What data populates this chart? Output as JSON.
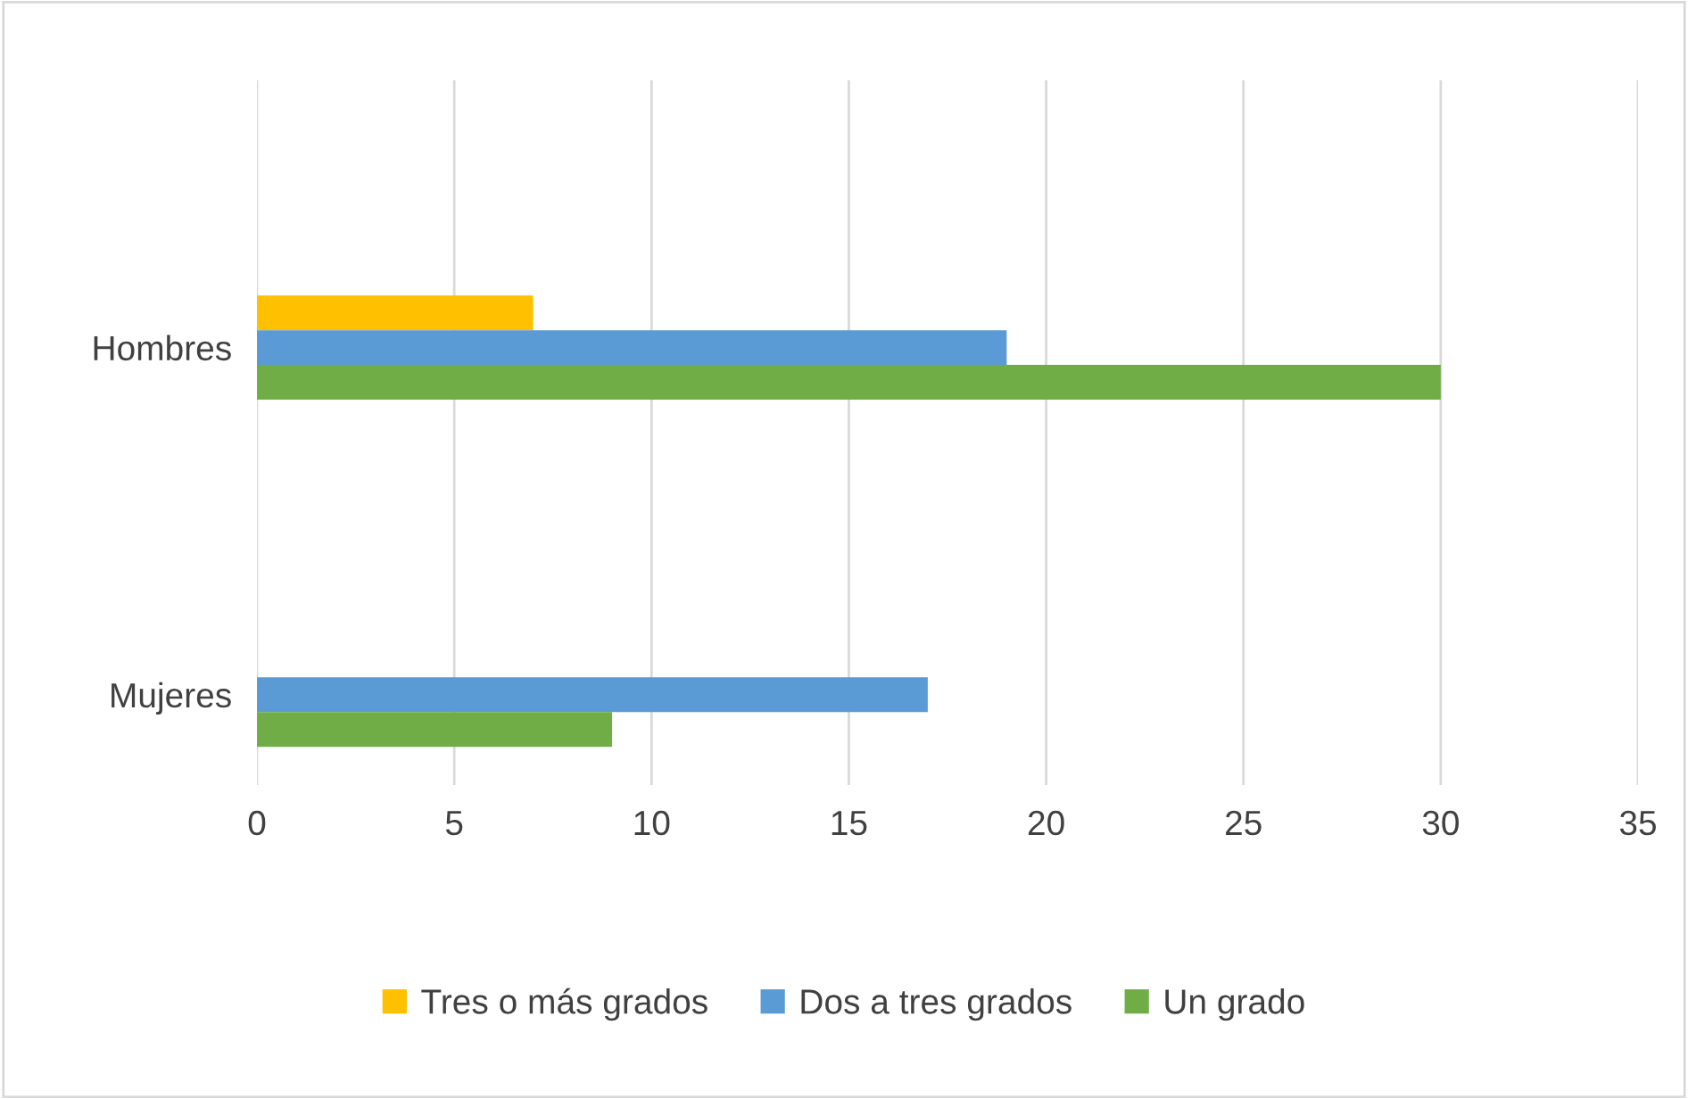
{
  "chart_data": {
    "type": "bar",
    "orientation": "horizontal",
    "categories": [
      "Hombres",
      "Mujeres"
    ],
    "series": [
      {
        "name": "Tres o más grados",
        "color": "#ffc000",
        "values": [
          7,
          0
        ]
      },
      {
        "name": "Dos a tres grados",
        "color": "#5b9bd5",
        "values": [
          19,
          17
        ]
      },
      {
        "name": "Un grado",
        "color": "#70ad47",
        "values": [
          30,
          9
        ]
      }
    ],
    "xlim": [
      0,
      35
    ],
    "xticks": [
      0,
      5,
      10,
      15,
      20,
      25,
      30,
      35
    ],
    "grid": "x",
    "legend": "bottom"
  }
}
